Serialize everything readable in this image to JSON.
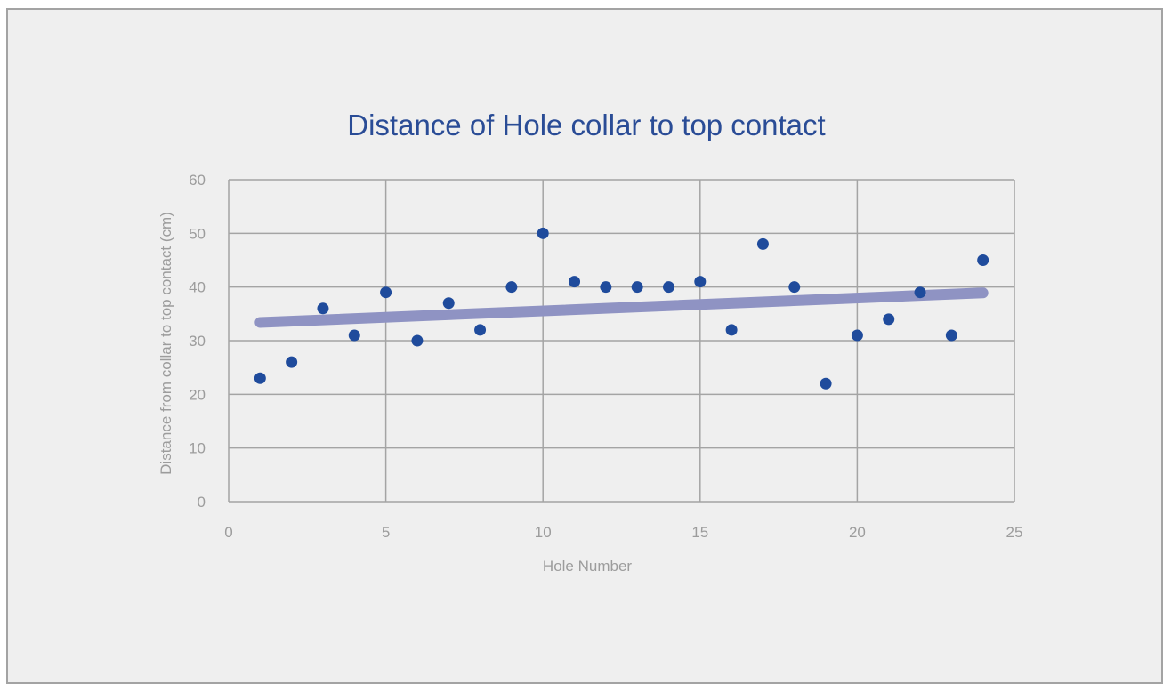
{
  "chart_data": {
    "type": "scatter",
    "title": "Distance of Hole collar to top contact",
    "xlabel": "Hole Number",
    "ylabel": "Distance from collar to top contact (cm)",
    "xlim": [
      0,
      25
    ],
    "ylim": [
      0,
      60
    ],
    "x_ticks": [
      0,
      5,
      10,
      15,
      20,
      25
    ],
    "y_ticks": [
      0,
      10,
      20,
      30,
      40,
      50,
      60
    ],
    "grid": true,
    "series": [
      {
        "x": [
          1,
          2,
          3,
          4,
          5,
          6,
          7,
          8,
          9,
          10,
          11,
          12,
          13,
          14,
          15,
          16,
          17,
          18,
          19,
          20,
          21,
          22,
          23,
          24
        ],
        "y": [
          23,
          26,
          36,
          31,
          39,
          30,
          37,
          32,
          40,
          50,
          41,
          40,
          40,
          40,
          41,
          32,
          48,
          40,
          22,
          31,
          34,
          39,
          31,
          45
        ],
        "color": "#1f4b9c"
      }
    ],
    "trendline": {
      "x": [
        1,
        24
      ],
      "y": [
        33.4,
        38.9
      ],
      "color": "#8f93c3"
    }
  }
}
